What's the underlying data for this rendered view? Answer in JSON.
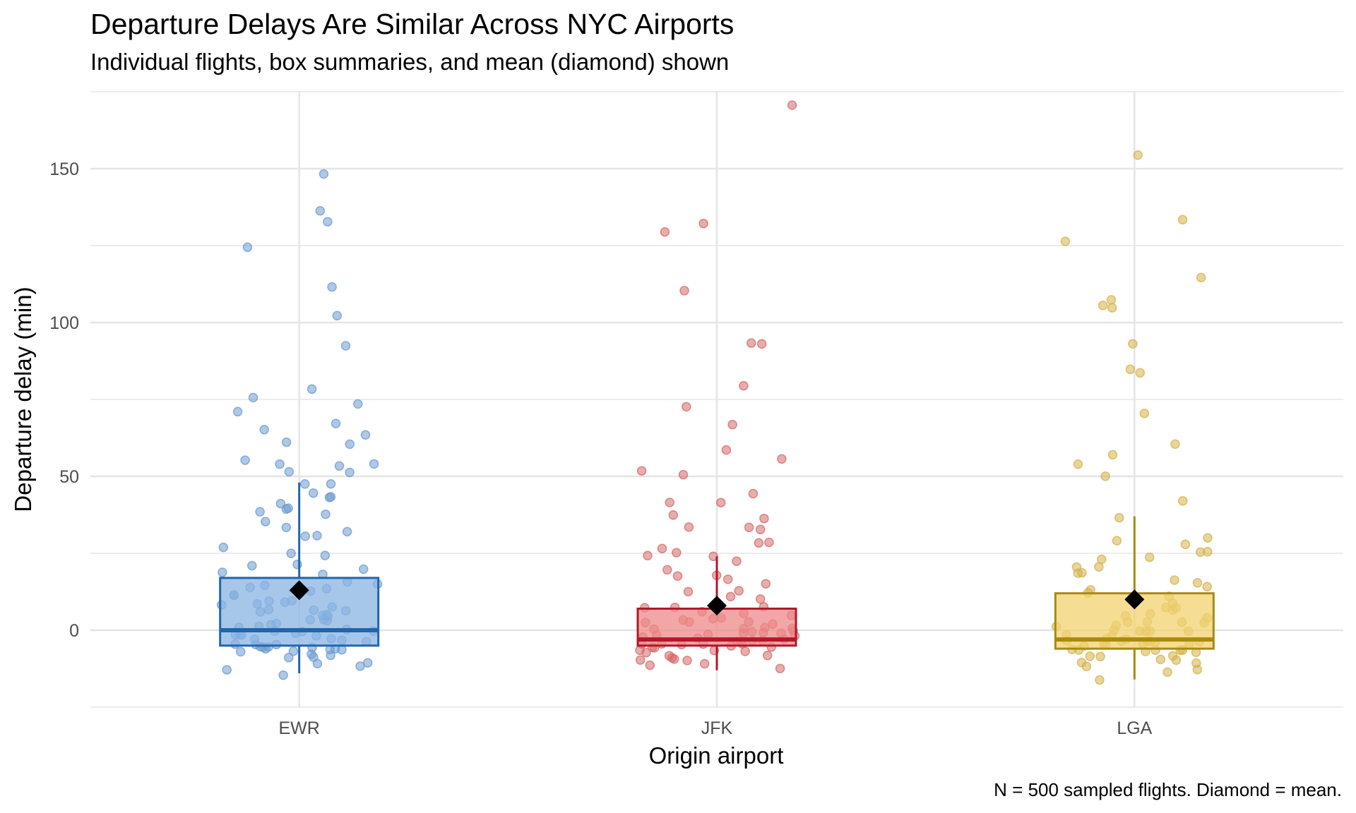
{
  "chart_data": {
    "type": "box",
    "title": "Departure Delays Are Similar Across NYC Airports",
    "subtitle": "Individual flights, box summaries, and mean (diamond) shown",
    "caption": "N = 500 sampled flights. Diamond = mean.",
    "xlabel": "Origin airport",
    "ylabel": "Departure delay (min)",
    "categories": [
      "EWR",
      "JFK",
      "LGA"
    ],
    "ylim": [
      -25,
      175
    ],
    "yticks": [
      0,
      50,
      100,
      150
    ],
    "grid": true,
    "legend": "none",
    "colors": {
      "EWR": {
        "fill": "#89B4E3",
        "line": "#2166AC",
        "point": "#6C9BD0"
      },
      "JFK": {
        "fill": "#EE8A8A",
        "line": "#B2182B",
        "point": "#D46A6A"
      },
      "LGA": {
        "fill": "#F2D270",
        "line": "#A88A10",
        "point": "#D4B24A"
      },
      "mean_marker": "#000000",
      "grid": "#E5E5E5"
    },
    "series": [
      {
        "category": "EWR",
        "box": {
          "lower_whisker": -14,
          "q1": -5,
          "median": 0,
          "q3": 17,
          "upper_whisker": 48
        },
        "mean": 13,
        "points": [
          148,
          137,
          133,
          125,
          112,
          102,
          92,
          78,
          76,
          74,
          71,
          67,
          65,
          64,
          61,
          60,
          55,
          54,
          54,
          53,
          52,
          51,
          48,
          47,
          44,
          43,
          43,
          41,
          40,
          39,
          38,
          37,
          35,
          33,
          32,
          31,
          31,
          27,
          25,
          24,
          22,
          21,
          20,
          19,
          18,
          16,
          15,
          15,
          14,
          14,
          13,
          12,
          11,
          10,
          10,
          9,
          9,
          8,
          8,
          7,
          7,
          6,
          6,
          5,
          5,
          4,
          4,
          3,
          3,
          2,
          2,
          1,
          1,
          0,
          0,
          0,
          -1,
          -1,
          -1,
          -2,
          -2,
          -2,
          -3,
          -3,
          -3,
          -4,
          -4,
          -4,
          -5,
          -5,
          -5,
          -5,
          -6,
          -6,
          -6,
          -6,
          -7,
          -7,
          -7,
          -8,
          -8,
          -9,
          -9,
          -10,
          -11,
          -12,
          -13,
          -14
        ]
      },
      {
        "category": "JFK",
        "box": {
          "lower_whisker": -13,
          "q1": -5,
          "median": -3,
          "q3": 7,
          "upper_whisker": 24
        },
        "mean": 8,
        "points": [
          170,
          132,
          130,
          111,
          94,
          93,
          80,
          73,
          67,
          58,
          56,
          52,
          51,
          45,
          42,
          41,
          38,
          36,
          34,
          33,
          33,
          29,
          28,
          26,
          25,
          24,
          24,
          23,
          19,
          18,
          18,
          16,
          15,
          13,
          12,
          11,
          10,
          8,
          8,
          7,
          6,
          6,
          5,
          4,
          4,
          3,
          3,
          2,
          2,
          2,
          1,
          1,
          1,
          0,
          0,
          0,
          -1,
          -1,
          -1,
          -2,
          -2,
          -2,
          -2,
          -3,
          -3,
          -3,
          -3,
          -4,
          -4,
          -4,
          -4,
          -5,
          -5,
          -5,
          -5,
          -6,
          -6,
          -6,
          -6,
          -7,
          -7,
          -7,
          -8,
          -8,
          -9,
          -9,
          -10,
          -10,
          -11,
          -12,
          -13
        ]
      },
      {
        "category": "LGA",
        "box": {
          "lower_whisker": -16,
          "q1": -6,
          "median": -3,
          "q3": 12,
          "upper_whisker": 37
        },
        "mean": 10,
        "points": [
          155,
          133,
          126,
          115,
          108,
          105,
          105,
          93,
          85,
          83,
          71,
          61,
          57,
          54,
          50,
          42,
          37,
          30,
          29,
          28,
          26,
          25,
          24,
          23,
          21,
          20,
          19,
          18,
          16,
          15,
          14,
          13,
          12,
          11,
          9,
          8,
          7,
          6,
          5,
          4,
          4,
          3,
          3,
          2,
          2,
          1,
          1,
          0,
          0,
          -1,
          -1,
          -1,
          -2,
          -2,
          -2,
          -3,
          -3,
          -3,
          -3,
          -4,
          -4,
          -4,
          -4,
          -5,
          -5,
          -5,
          -5,
          -6,
          -6,
          -6,
          -6,
          -7,
          -7,
          -7,
          -8,
          -8,
          -9,
          -9,
          -10,
          -10,
          -11,
          -12,
          -13,
          -14,
          -16
        ]
      }
    ]
  }
}
